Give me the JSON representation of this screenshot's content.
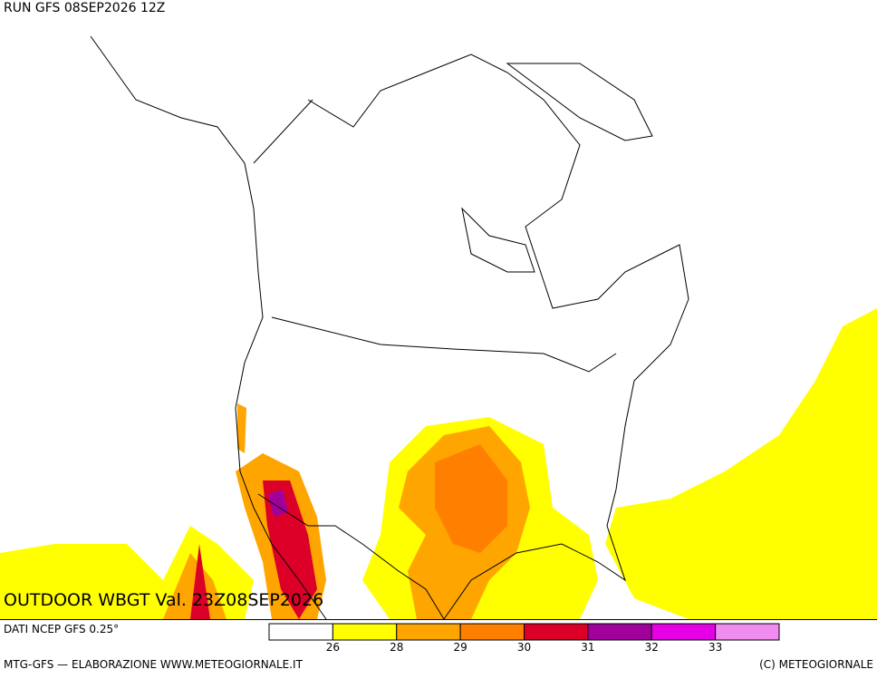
{
  "header": {
    "run": "RUN GFS 08SEP2026 12Z"
  },
  "title": "OUTDOOR WBGT Val. 23Z08SEP2026",
  "source": "DATI NCEP GFS 0.25°",
  "footer": {
    "left": "MTG-GFS — ELABORAZIONE WWW.METEOGIORNALE.IT",
    "right": "(C) METEOGIORNALE"
  },
  "legend": {
    "colors": [
      "#ffffff",
      "#ffff00",
      "#ffa500",
      "#ff7f00",
      "#dc0028",
      "#a0009c",
      "#e600e6",
      "#f08cf0"
    ],
    "ticks": [
      26,
      28,
      29,
      30,
      31,
      32,
      33
    ]
  }
}
